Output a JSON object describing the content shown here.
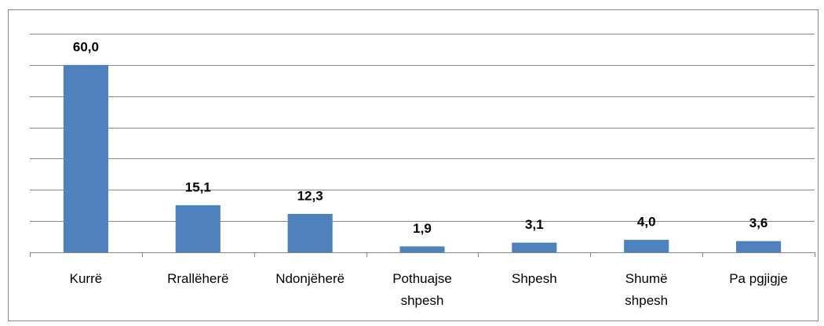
{
  "chart_data": {
    "type": "bar",
    "categories": [
      "Kurrë",
      "Rrallëherë",
      "Ndonjëherë",
      "Pothuajse shpesh",
      "Shpesh",
      "Shumë shpesh",
      "Pa pgjigje"
    ],
    "values": [
      60.0,
      15.1,
      12.3,
      1.9,
      3.1,
      4.0,
      3.6
    ],
    "value_labels": [
      "60,0",
      "15,1",
      "12,3",
      "1,9",
      "3,1",
      "4,0",
      "3,6"
    ],
    "color": "#4f81bd",
    "ylim": [
      0,
      70
    ],
    "yticks": [
      0,
      10,
      20,
      30,
      40,
      50,
      60,
      70
    ],
    "grid": true
  }
}
